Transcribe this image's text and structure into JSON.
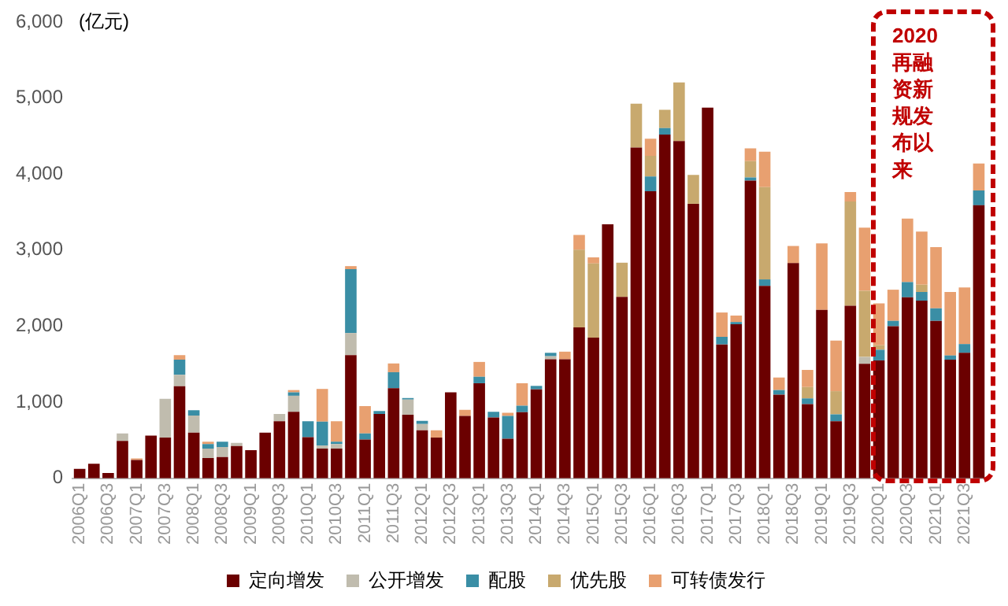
{
  "chart_data": {
    "type": "bar",
    "stacked": true,
    "ylabel": "(亿元)",
    "categories": [
      "2006Q1",
      null,
      "2006Q3",
      null,
      "2007Q1",
      null,
      "2007Q3",
      null,
      "2008Q1",
      null,
      "2008Q3",
      null,
      "2009Q1",
      null,
      "2009Q3",
      null,
      "2010Q1",
      null,
      "2010Q3",
      null,
      "2011Q1",
      null,
      "2011Q3",
      null,
      "2012Q1",
      null,
      "2012Q3",
      null,
      "2013Q1",
      null,
      "2013Q3",
      null,
      "2014Q1",
      null,
      "2014Q3",
      null,
      "2015Q1",
      null,
      "2015Q3",
      null,
      "2016Q1",
      null,
      "2016Q3",
      null,
      "2017Q1",
      null,
      "2017Q3",
      null,
      "2018Q1",
      null,
      "2018Q3",
      null,
      "2019Q1",
      null,
      "2019Q3",
      null,
      "2020Q1",
      null,
      "2020Q3",
      null,
      "2021Q1",
      null,
      "2021Q3",
      null
    ],
    "series": [
      {
        "name": "定向增发",
        "color": "#6b0000",
        "values": [
          125,
          190,
          70,
          490,
          240,
          560,
          535,
          1210,
          600,
          265,
          280,
          425,
          370,
          600,
          750,
          875,
          540,
          390,
          390,
          1620,
          510,
          845,
          1185,
          835,
          630,
          535,
          1130,
          820,
          1250,
          800,
          520,
          870,
          1170,
          1565,
          1565,
          1985,
          1850,
          3340,
          2385,
          4350,
          3775,
          4520,
          4435,
          3610,
          4875,
          1760,
          2025,
          3915,
          2530,
          1100,
          2830,
          975,
          2215,
          750,
          2270,
          1505,
          1550,
          2000,
          2380,
          2335,
          2070,
          1560,
          1650,
          3590
        ]
      },
      {
        "name": "公开增发",
        "color": "#c0bcae",
        "values": [
          0,
          0,
          0,
          100,
          0,
          0,
          510,
          150,
          225,
          125,
          130,
          40,
          0,
          0,
          95,
          210,
          0,
          40,
          60,
          290,
          null,
          0,
          0,
          200,
          85,
          0,
          0,
          0,
          0,
          0,
          null,
          0,
          0,
          40,
          0,
          0,
          0,
          null,
          0,
          0,
          0,
          0,
          0,
          0,
          0,
          0,
          0,
          0,
          0,
          0,
          0,
          0,
          0,
          0,
          0,
          90,
          0,
          0,
          0,
          0,
          0,
          0,
          0,
          0
        ]
      },
      {
        "name": "配股",
        "color": "#3a8ea5",
        "values": [
          0,
          0,
          0,
          0,
          0,
          0,
          0,
          200,
          70,
          60,
          70,
          0,
          0,
          0,
          0,
          45,
          210,
          315,
          30,
          840,
          80,
          40,
          210,
          20,
          40,
          0,
          0,
          0,
          85,
          75,
          300,
          85,
          45,
          45,
          0,
          0,
          0,
          0,
          0,
          0,
          195,
          85,
          0,
          0,
          0,
          100,
          30,
          40,
          85,
          60,
          0,
          75,
          0,
          90,
          0,
          0,
          140,
          70,
          200,
          115,
          165,
          55,
          115,
          195
        ]
      },
      {
        "name": "优先股",
        "color": "#c8a96e",
        "values": [
          0,
          0,
          0,
          0,
          0,
          0,
          0,
          0,
          0,
          0,
          0,
          0,
          0,
          0,
          0,
          0,
          0,
          0,
          0,
          0,
          0,
          0,
          0,
          0,
          0,
          0,
          0,
          0,
          0,
          0,
          0,
          0,
          0,
          0,
          0,
          1020,
          975,
          0,
          450,
          575,
          270,
          240,
          770,
          380,
          0,
          0,
          0,
          215,
          1215,
          0,
          0,
          150,
          0,
          305,
          1370,
          870,
          60,
          0,
          0,
          95,
          0,
          0,
          0,
          0
        ]
      },
      {
        "name": "可转债发行",
        "color": "#e8a070",
        "values": [
          0,
          0,
          0,
          0,
          20,
          0,
          0,
          60,
          0,
          30,
          0,
          0,
          0,
          0,
          0,
          30,
          0,
          430,
          270,
          40,
          360,
          0,
          115,
          0,
          0,
          95,
          0,
          80,
          195,
          0,
          40,
          295,
          0,
          0,
          100,
          195,
          80,
          0,
          0,
          0,
          225,
          0,
          0,
          0,
          0,
          320,
          85,
          170,
          465,
          165,
          225,
          225,
          875,
          665,
          125,
          830,
          550,
          410,
          835,
          700,
          805,
          835,
          745,
          355
        ]
      }
    ],
    "ylim": [
      0,
      6000
    ],
    "yticks": [
      0,
      {
        "value": 1000,
        "label": "1,000"
      },
      {
        "value": 2000,
        "label": "2,000"
      },
      {
        "value": 3000,
        "label": "3,000"
      },
      {
        "value": 4000,
        "label": "4,000"
      },
      {
        "value": 5000,
        "label": "5,000"
      },
      {
        "value": 6000,
        "label": "6,000"
      }
    ],
    "grid": false,
    "legend": "bottom",
    "annotations": [
      "2020再融资新规发布以来"
    ]
  }
}
